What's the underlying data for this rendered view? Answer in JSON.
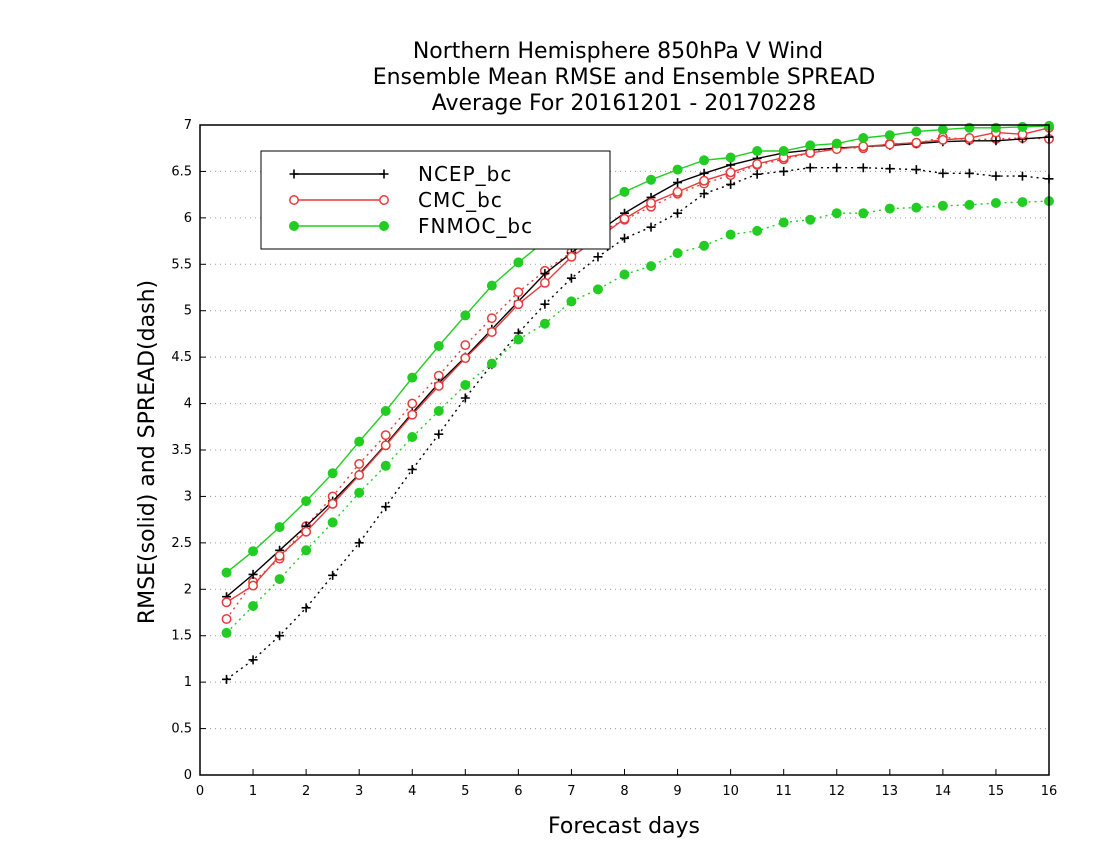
{
  "chart_data": {
    "type": "line",
    "title": [
      "Northern Hemisphere 850hPa V Wind",
      "Ensemble Mean RMSE and Ensemble SPREAD",
      "Average For 20161201 - 20170228"
    ],
    "xlabel": "Forecast days",
    "ylabel": "RMSE(solid) and SPREAD(dash)",
    "xlim": [
      0,
      16
    ],
    "ylim": [
      0,
      7
    ],
    "xticks": [
      "0",
      "1",
      "2",
      "3",
      "4",
      "5",
      "6",
      "7",
      "8",
      "9",
      "10",
      "11",
      "12",
      "13",
      "14",
      "15",
      "16"
    ],
    "yticks": [
      "0",
      "0.5",
      "1",
      "1.5",
      "2",
      "2.5",
      "3",
      "3.5",
      "4",
      "4.5",
      "5",
      "5.5",
      "6",
      "6.5",
      "7"
    ],
    "grid": true,
    "legend_position": "top-left",
    "x": [
      0.5,
      1,
      1.5,
      2,
      2.5,
      3,
      3.5,
      4,
      4.5,
      5,
      5.5,
      6,
      6.5,
      7,
      7.5,
      8,
      8.5,
      9,
      9.5,
      10,
      10.5,
      11,
      11.5,
      12,
      12.5,
      13,
      13.5,
      14,
      14.5,
      15,
      15.5,
      16
    ],
    "series": [
      {
        "name": "NCEP_bc",
        "kind": "rmse",
        "style": "solid",
        "marker": "plus",
        "color": "#000000",
        "values": [
          1.92,
          2.16,
          2.42,
          2.68,
          2.95,
          3.24,
          3.56,
          3.9,
          4.22,
          4.5,
          4.8,
          5.1,
          5.4,
          5.62,
          5.85,
          6.05,
          6.22,
          6.38,
          6.48,
          6.57,
          6.64,
          6.7,
          6.73,
          6.75,
          6.77,
          6.78,
          6.8,
          6.82,
          6.83,
          6.83,
          6.85,
          6.87
        ]
      },
      {
        "name": "CMC_bc",
        "kind": "rmse",
        "style": "solid",
        "marker": "circle",
        "color": "#e83a3a",
        "values": [
          1.86,
          2.04,
          2.36,
          2.62,
          2.92,
          3.23,
          3.55,
          3.88,
          4.19,
          4.49,
          4.77,
          5.07,
          5.3,
          5.58,
          5.78,
          5.99,
          6.16,
          6.28,
          6.4,
          6.49,
          6.58,
          6.65,
          6.7,
          6.74,
          6.77,
          6.79,
          6.81,
          6.84,
          6.86,
          6.92,
          6.9,
          6.97
        ]
      },
      {
        "name": "FNMOC_bc",
        "kind": "rmse",
        "style": "solid",
        "marker": "filled-circle",
        "color": "#22cc22",
        "values": [
          2.18,
          2.41,
          2.67,
          2.95,
          3.25,
          3.59,
          3.92,
          4.28,
          4.62,
          4.95,
          5.27,
          5.52,
          5.75,
          5.97,
          6.13,
          6.28,
          6.41,
          6.52,
          6.62,
          6.65,
          6.72,
          6.72,
          6.78,
          6.8,
          6.86,
          6.89,
          6.93,
          6.95,
          6.97,
          6.97,
          6.98,
          6.99
        ]
      },
      {
        "name": "NCEP_bc",
        "kind": "spread",
        "style": "dash",
        "marker": "plus",
        "color": "#000000",
        "values": [
          1.03,
          1.24,
          1.5,
          1.8,
          2.15,
          2.5,
          2.89,
          3.29,
          3.67,
          4.06,
          4.42,
          4.76,
          5.07,
          5.35,
          5.58,
          5.78,
          5.9,
          6.05,
          6.26,
          6.36,
          6.47,
          6.5,
          6.54,
          6.54,
          6.54,
          6.53,
          6.52,
          6.48,
          6.48,
          6.45,
          6.45,
          6.42
        ]
      },
      {
        "name": "CMC_bc",
        "kind": "spread",
        "style": "dash",
        "marker": "circle",
        "color": "#e83a3a",
        "values": [
          1.68,
          2.08,
          2.33,
          2.68,
          3.0,
          3.35,
          3.66,
          4.0,
          4.3,
          4.63,
          4.92,
          5.2,
          5.43,
          5.63,
          5.83,
          5.98,
          6.12,
          6.26,
          6.37,
          6.46,
          6.57,
          6.63,
          6.7,
          6.76,
          6.75,
          6.8,
          6.8,
          6.87,
          6.84,
          6.85,
          6.86,
          6.85
        ]
      },
      {
        "name": "FNMOC_bc",
        "kind": "spread",
        "style": "dash",
        "marker": "filled-circle",
        "color": "#22cc22",
        "values": [
          1.53,
          1.82,
          2.11,
          2.42,
          2.72,
          3.04,
          3.33,
          3.64,
          3.92,
          4.2,
          4.43,
          4.69,
          4.86,
          5.1,
          5.23,
          5.39,
          5.48,
          5.62,
          5.7,
          5.82,
          5.86,
          5.95,
          5.98,
          6.05,
          6.05,
          6.1,
          6.11,
          6.13,
          6.14,
          6.16,
          6.17,
          6.18
        ]
      }
    ],
    "legend": [
      {
        "label": "NCEP_bc",
        "marker": "plus",
        "color": "#000000"
      },
      {
        "label": "CMC_bc",
        "marker": "circle",
        "color": "#e83a3a"
      },
      {
        "label": "FNMOC_bc",
        "marker": "filled-circle",
        "color": "#22cc22"
      }
    ]
  }
}
